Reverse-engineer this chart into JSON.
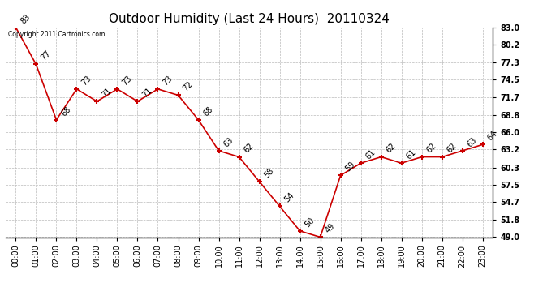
{
  "title": "Outdoor Humidity (Last 24 Hours)  20110324",
  "copyright": "Copyright 2011 Cartronics.com",
  "x_labels": [
    "00:00",
    "01:00",
    "02:00",
    "03:00",
    "04:00",
    "05:00",
    "06:00",
    "07:00",
    "08:00",
    "09:00",
    "10:00",
    "11:00",
    "12:00",
    "13:00",
    "14:00",
    "15:00",
    "16:00",
    "17:00",
    "18:00",
    "19:00",
    "20:00",
    "21:00",
    "22:00",
    "23:00"
  ],
  "y_values": [
    83,
    77,
    68,
    73,
    71,
    73,
    71,
    73,
    72,
    68,
    63,
    62,
    58,
    54,
    50,
    49,
    59,
    61,
    62,
    61,
    62,
    62,
    63,
    64
  ],
  "point_labels": [
    "83",
    "77",
    "68",
    "73",
    "71",
    "73",
    "71",
    "73",
    "72",
    "68",
    "63",
    "62",
    "58",
    "54",
    "50",
    "49",
    "59",
    "61",
    "62",
    "61",
    "62",
    "62",
    "63",
    "64"
  ],
  "line_color": "#cc0000",
  "marker_color": "#cc0000",
  "background_color": "#ffffff",
  "plot_bg_color": "#ffffff",
  "grid_color": "#bbbbbb",
  "title_fontsize": 11,
  "tick_fontsize": 7,
  "label_fontsize": 7,
  "ylim_min": 49.0,
  "ylim_max": 83.0,
  "yticks": [
    83.0,
    80.2,
    77.3,
    74.5,
    71.7,
    68.8,
    66.0,
    63.2,
    60.3,
    57.5,
    54.7,
    51.8,
    49.0
  ]
}
